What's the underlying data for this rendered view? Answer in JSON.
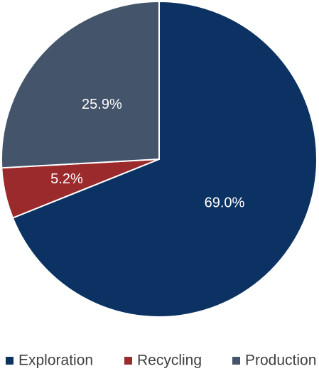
{
  "chart_data": {
    "type": "pie",
    "categories": [
      "Exploration",
      "Recycling",
      "Production"
    ],
    "values": [
      69.0,
      5.2,
      25.9
    ],
    "value_labels": [
      "69.0%",
      "5.2%",
      "25.9%"
    ],
    "colors": [
      "#0b3262",
      "#9b2a2c",
      "#44546a"
    ],
    "legend": "bottom"
  }
}
